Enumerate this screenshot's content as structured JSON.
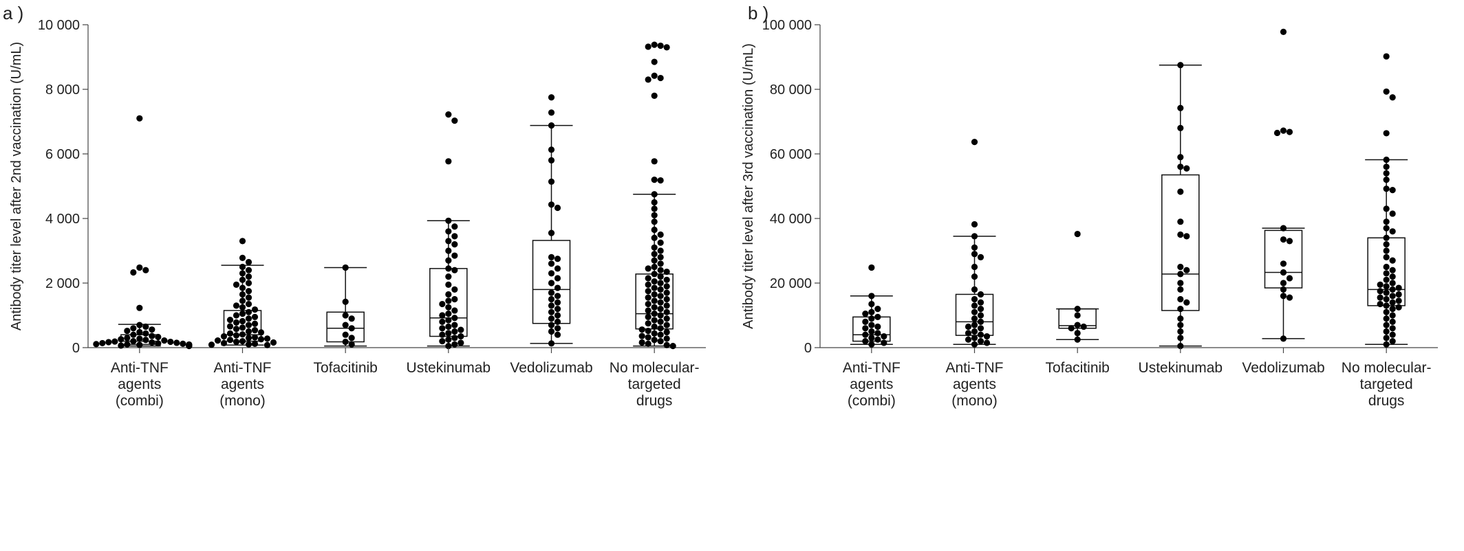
{
  "chart_data": [
    {
      "type": "box",
      "panel_label": "a )",
      "ylabel": "Antibody titer level after 2nd vaccination (U/mL)",
      "ylim": [
        0,
        10000
      ],
      "yticks": [
        0,
        2000,
        4000,
        6000,
        8000,
        10000
      ],
      "ytick_labels": [
        "0",
        "2 000",
        "4 000",
        "6 000",
        "8 000",
        "10 000"
      ],
      "categories": [
        [
          "Anti-TNF",
          "agents",
          "(combi)"
        ],
        [
          "Anti-TNF",
          "agents",
          "(mono)"
        ],
        [
          "Tofacitinib"
        ],
        [
          "Ustekinumab"
        ],
        [
          "Vedolizumab"
        ],
        [
          "No molecular-",
          "targeted",
          "drugs"
        ]
      ],
      "boxes": [
        {
          "whisker_low": 50,
          "q1": 100,
          "median": 200,
          "q3": 400,
          "whisker_high": 720,
          "points": [
            7100,
            2480,
            2400,
            2330,
            1230,
            700,
            650,
            600,
            560,
            520,
            480,
            440,
            400,
            360,
            330,
            300,
            280,
            260,
            240,
            220,
            200,
            190,
            180,
            170,
            160,
            150,
            140,
            130,
            120,
            110,
            100,
            95,
            90,
            85,
            80,
            75,
            70,
            65,
            60,
            55,
            50
          ]
        },
        {
          "whisker_low": 80,
          "q1": 200,
          "median": 400,
          "q3": 1150,
          "whisker_high": 2550,
          "points": [
            3300,
            2780,
            2650,
            2500,
            2400,
            2300,
            2200,
            2100,
            2000,
            1950,
            1850,
            1750,
            1650,
            1550,
            1450,
            1350,
            1300,
            1250,
            1180,
            1100,
            1050,
            1000,
            950,
            900,
            860,
            820,
            780,
            740,
            700,
            660,
            620,
            580,
            540,
            500,
            470,
            440,
            410,
            380,
            350,
            320,
            300,
            280,
            260,
            240,
            220,
            200,
            180,
            160,
            140,
            120,
            100,
            90,
            80
          ]
        },
        {
          "whisker_low": 50,
          "q1": 180,
          "median": 600,
          "q3": 1100,
          "whisker_high": 2480,
          "points": [
            2480,
            1420,
            1000,
            900,
            700,
            600,
            400,
            300,
            180,
            100
          ]
        },
        {
          "whisker_low": 50,
          "q1": 350,
          "median": 920,
          "q3": 2450,
          "whisker_high": 3930,
          "points": [
            7220,
            7030,
            5770,
            3930,
            3750,
            3600,
            3450,
            3300,
            3200,
            3000,
            2850,
            2700,
            2450,
            2400,
            2200,
            1950,
            1800,
            1650,
            1500,
            1450,
            1350,
            1250,
            1150,
            1050,
            1000,
            920,
            850,
            800,
            700,
            650,
            600,
            550,
            500,
            450,
            400,
            350,
            300,
            250,
            200,
            150,
            100,
            50
          ]
        },
        {
          "whisker_low": 130,
          "q1": 750,
          "median": 1800,
          "q3": 3320,
          "whisker_high": 6880,
          "points": [
            7750,
            7280,
            6880,
            6130,
            5800,
            5140,
            4430,
            4330,
            3550,
            2800,
            2750,
            2600,
            2450,
            2300,
            2150,
            2000,
            1850,
            1700,
            1600,
            1500,
            1400,
            1300,
            1200,
            1100,
            1000,
            900,
            800,
            700,
            600,
            500,
            400,
            130
          ]
        },
        {
          "whisker_low": 50,
          "q1": 580,
          "median": 1050,
          "q3": 2280,
          "whisker_high": 4750,
          "points": [
            9380,
            9350,
            9320,
            9300,
            8850,
            8420,
            8350,
            8300,
            7800,
            5770,
            5200,
            5180,
            4750,
            4500,
            4300,
            4100,
            3900,
            3650,
            3500,
            3400,
            3250,
            3100,
            3000,
            2900,
            2800,
            2700,
            2600,
            2500,
            2450,
            2400,
            2350,
            2280,
            2200,
            2150,
            2100,
            2050,
            2000,
            1950,
            1900,
            1850,
            1800,
            1750,
            1700,
            1650,
            1600,
            1550,
            1500,
            1450,
            1400,
            1350,
            1300,
            1250,
            1200,
            1150,
            1100,
            1050,
            1000,
            950,
            900,
            850,
            800,
            750,
            700,
            650,
            600,
            560,
            520,
            480,
            440,
            400,
            360,
            320,
            280,
            240,
            200,
            160,
            120,
            80,
            50
          ]
        }
      ]
    },
    {
      "type": "box",
      "panel_label": "b )",
      "ylabel": "Antibody titer level after 3rd vaccination (U/mL)",
      "ylim": [
        0,
        100000
      ],
      "yticks": [
        0,
        20000,
        40000,
        60000,
        80000,
        100000
      ],
      "ytick_labels": [
        "0",
        "20 000",
        "40 000",
        "60 000",
        "80 000",
        "100 000"
      ],
      "categories": [
        [
          "Anti-TNF",
          "agents",
          "(combi)"
        ],
        [
          "Anti-TNF",
          "agents",
          "(mono)"
        ],
        [
          "Tofacitinib"
        ],
        [
          "Ustekinumab"
        ],
        [
          "Vedolizumab"
        ],
        [
          "No molecular-",
          "targeted",
          "drugs"
        ]
      ],
      "boxes": [
        {
          "whisker_low": 1000,
          "q1": 2000,
          "median": 4000,
          "q3": 9500,
          "whisker_high": 16000,
          "points": [
            24800,
            16000,
            13500,
            12000,
            11000,
            10500,
            9500,
            9000,
            8000,
            7000,
            6500,
            6000,
            5000,
            4500,
            4000,
            3500,
            3000,
            2500,
            2000,
            1500,
            1000
          ]
        },
        {
          "whisker_low": 1000,
          "q1": 3800,
          "median": 8000,
          "q3": 16500,
          "whisker_high": 34500,
          "points": [
            63700,
            38200,
            34500,
            31000,
            29000,
            28000,
            25000,
            22000,
            18000,
            16500,
            15000,
            14000,
            13000,
            12000,
            11000,
            10000,
            9000,
            8000,
            7000,
            6500,
            6000,
            5000,
            4500,
            4000,
            3500,
            3000,
            2500,
            2000,
            1500,
            1000
          ]
        },
        {
          "whisker_low": 2500,
          "q1": 6000,
          "median": 6800,
          "q3": 12000,
          "whisker_high": 12000,
          "points": [
            35200,
            12000,
            10000,
            7000,
            6500,
            6000,
            4500,
            2500
          ]
        },
        {
          "whisker_low": 500,
          "q1": 11500,
          "median": 22800,
          "q3": 53500,
          "whisker_high": 87500,
          "points": [
            87500,
            74200,
            68000,
            59000,
            56000,
            55500,
            48300,
            39000,
            35000,
            34500,
            25000,
            24000,
            22800,
            20000,
            18000,
            15000,
            14000,
            12000,
            9000,
            7000,
            5000,
            3000,
            500
          ]
        },
        {
          "whisker_low": 2800,
          "q1": 18500,
          "median": 23300,
          "q3": 36300,
          "whisker_high": 37000,
          "points": [
            97800,
            67200,
            66800,
            66500,
            37000,
            33500,
            33000,
            26000,
            23300,
            21500,
            20000,
            18000,
            16000,
            15500,
            2800
          ]
        },
        {
          "whisker_low": 1000,
          "q1": 13000,
          "median": 18000,
          "q3": 34000,
          "whisker_high": 58200,
          "points": [
            90200,
            79300,
            77500,
            66400,
            58200,
            56000,
            54000,
            52000,
            49200,
            48800,
            43000,
            41500,
            39000,
            37000,
            36000,
            34000,
            32000,
            30000,
            28000,
            27000,
            25000,
            24000,
            23000,
            22000,
            21000,
            20000,
            19500,
            19000,
            18500,
            18000,
            17500,
            17000,
            16500,
            16000,
            15500,
            15000,
            14500,
            14000,
            13500,
            13000,
            12500,
            12000,
            11000,
            10000,
            9000,
            8000,
            7000,
            6000,
            5000,
            4000,
            3000,
            2000,
            1000
          ]
        }
      ]
    }
  ]
}
